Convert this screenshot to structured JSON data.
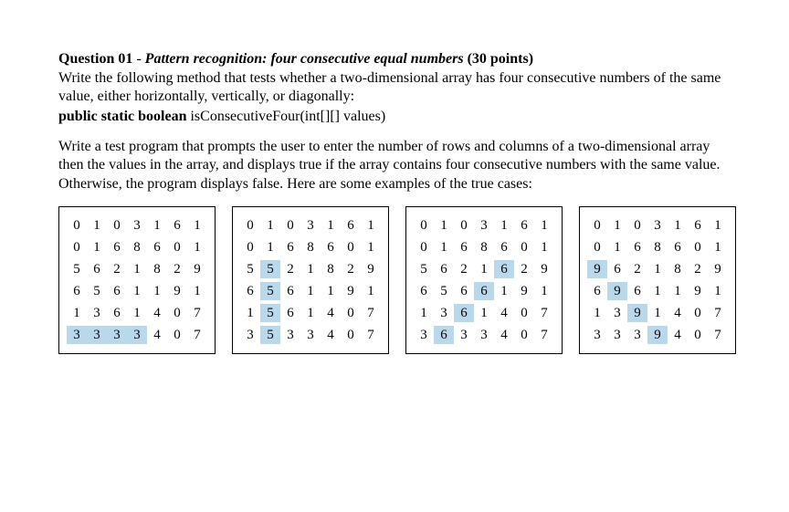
{
  "question": {
    "number": "Question 01",
    "dash": " - ",
    "title": "Pattern recognition: four consecutive equal numbers",
    "points": " (30 points)"
  },
  "para1": "Write the following method that tests whether a two-dimensional array has four consecutive numbers of the same value, either horizontally, vertically, or diagonally:",
  "signature": {
    "keywords": "public static boolean",
    "rest": " isConsecutiveFour(int[][] values)"
  },
  "para2": "Write a test program that prompts the user to enter the number of rows and columns of a two-dimensional array then the values in the array, and displays true if the array contains four consecutive numbers with the same value. Otherwise, the program displays false. Here are some examples of the true cases:",
  "grids": [
    {
      "rows": [
        [
          0,
          1,
          0,
          3,
          1,
          6,
          1
        ],
        [
          0,
          1,
          6,
          8,
          6,
          0,
          1
        ],
        [
          5,
          6,
          2,
          1,
          8,
          2,
          9
        ],
        [
          6,
          5,
          6,
          1,
          1,
          9,
          1
        ],
        [
          1,
          3,
          6,
          1,
          4,
          0,
          7
        ],
        [
          3,
          3,
          3,
          3,
          4,
          0,
          7
        ]
      ],
      "highlight": [
        [
          5,
          0
        ],
        [
          5,
          1
        ],
        [
          5,
          2
        ],
        [
          5,
          3
        ]
      ]
    },
    {
      "rows": [
        [
          0,
          1,
          0,
          3,
          1,
          6,
          1
        ],
        [
          0,
          1,
          6,
          8,
          6,
          0,
          1
        ],
        [
          5,
          5,
          2,
          1,
          8,
          2,
          9
        ],
        [
          6,
          5,
          6,
          1,
          1,
          9,
          1
        ],
        [
          1,
          5,
          6,
          1,
          4,
          0,
          7
        ],
        [
          3,
          5,
          3,
          3,
          4,
          0,
          7
        ]
      ],
      "highlight": [
        [
          2,
          1
        ],
        [
          3,
          1
        ],
        [
          4,
          1
        ],
        [
          5,
          1
        ]
      ]
    },
    {
      "rows": [
        [
          0,
          1,
          0,
          3,
          1,
          6,
          1
        ],
        [
          0,
          1,
          6,
          8,
          6,
          0,
          1
        ],
        [
          5,
          6,
          2,
          1,
          6,
          2,
          9
        ],
        [
          6,
          5,
          6,
          6,
          1,
          9,
          1
        ],
        [
          1,
          3,
          6,
          1,
          4,
          0,
          7
        ],
        [
          3,
          6,
          3,
          3,
          4,
          0,
          7
        ]
      ],
      "highlight": [
        [
          2,
          4
        ],
        [
          3,
          3
        ],
        [
          4,
          2
        ],
        [
          5,
          1
        ]
      ]
    },
    {
      "rows": [
        [
          0,
          1,
          0,
          3,
          1,
          6,
          1
        ],
        [
          0,
          1,
          6,
          8,
          6,
          0,
          1
        ],
        [
          9,
          6,
          2,
          1,
          8,
          2,
          9
        ],
        [
          6,
          9,
          6,
          1,
          1,
          9,
          1
        ],
        [
          1,
          3,
          9,
          1,
          4,
          0,
          7
        ],
        [
          3,
          3,
          3,
          9,
          4,
          0,
          7
        ]
      ],
      "highlight": [
        [
          2,
          0
        ],
        [
          3,
          1
        ],
        [
          4,
          2
        ],
        [
          5,
          3
        ]
      ]
    }
  ],
  "style": {
    "highlight_color": "#b9d8ec",
    "border_color": "#000000",
    "font_family": "Times New Roman",
    "cell_fontsize": 15,
    "body_fontsize": 16
  }
}
